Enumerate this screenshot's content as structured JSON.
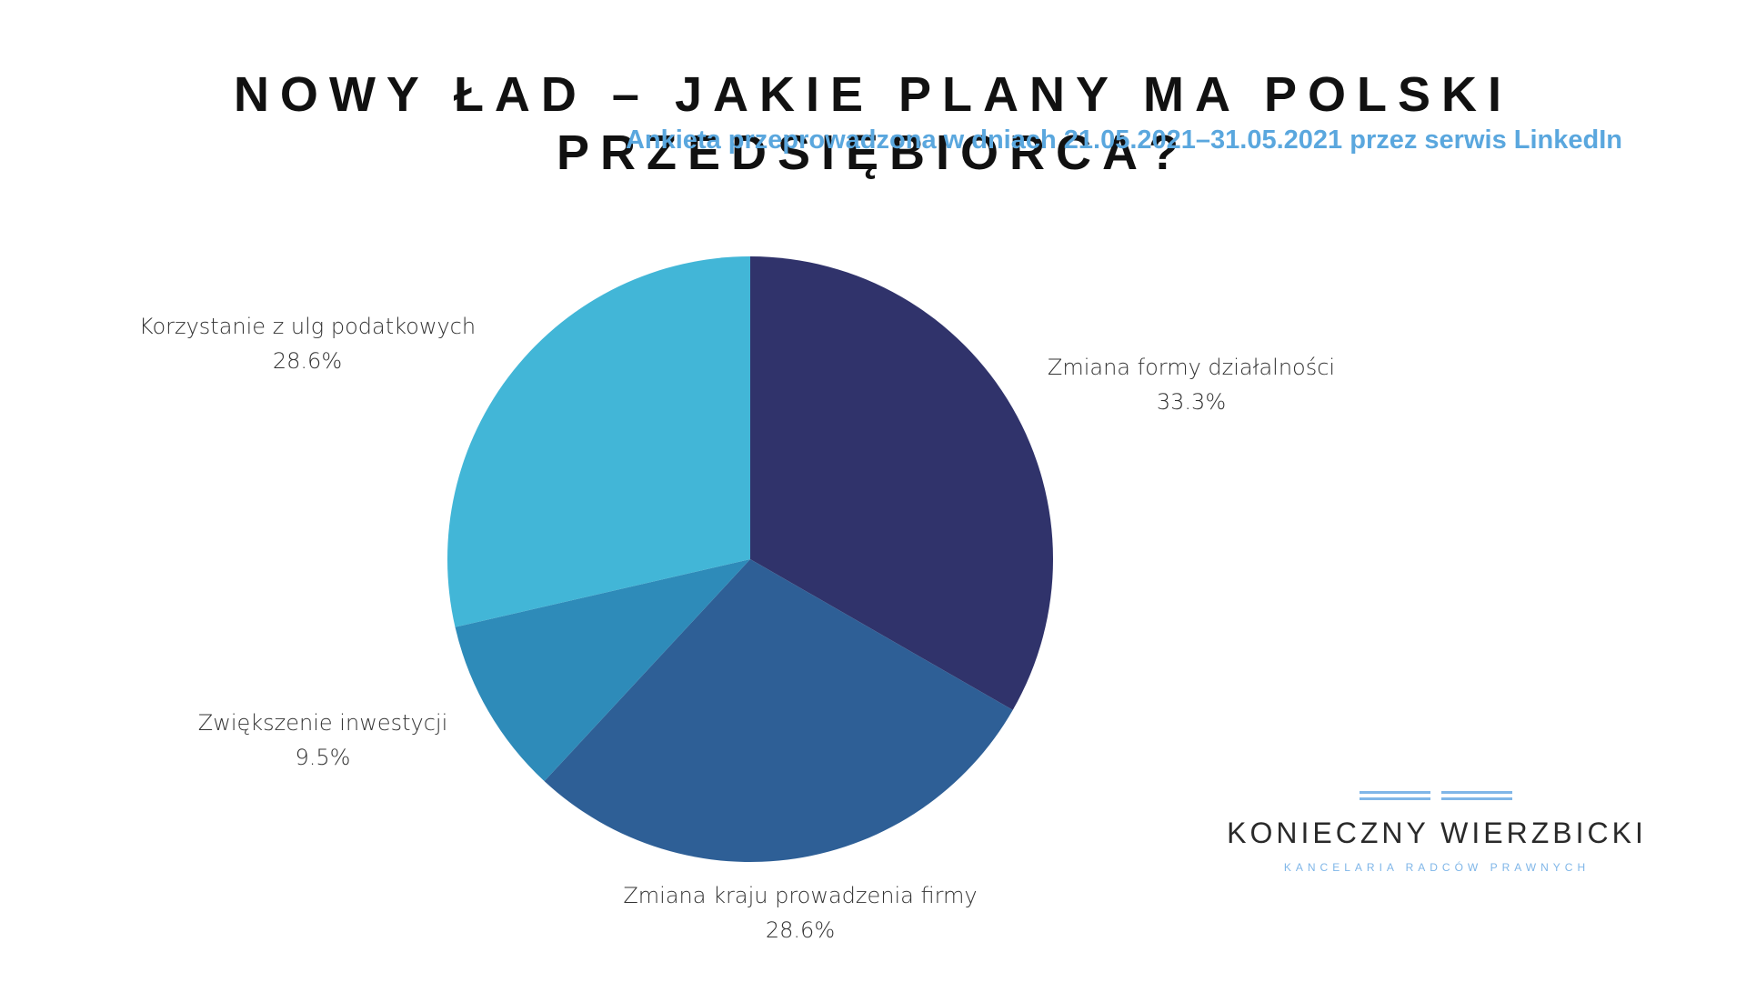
{
  "header": {
    "title": "NOWY ŁAD – JAKIE PLANY MA POLSKI PRZEDSIĘBIORCA?",
    "subtitle": "Ankieta przeprowadzona w dniach 21.05.2021–31.05.2021 przez serwis LinkedIn"
  },
  "chart_data": {
    "type": "pie",
    "title": "NOWY ŁAD – JAKIE PLANY MA POLSKI PRZEDSIĘBIORCA?",
    "subtitle": "Ankieta przeprowadzona w dniach 21.05.2021–31.05.2021 przez serwis LinkedIn",
    "start_angle": "12 o'clock",
    "direction": "clockwise",
    "slices": [
      {
        "label": "Zmiana formy działalności",
        "value": 33.3,
        "value_label": "33.3%",
        "color": "#30336b"
      },
      {
        "label": "Zmiana kraju prowadzenia firmy",
        "value": 28.6,
        "value_label": "28.6%",
        "color": "#2e5f96"
      },
      {
        "label": "Zwiększenie inwestycji",
        "value": 9.5,
        "value_label": "9.5%",
        "color": "#2e8bb9"
      },
      {
        "label": "Korzystanie z ulg podatkowych",
        "value": 28.6,
        "value_label": "28.6%",
        "color": "#42b6d7"
      }
    ]
  },
  "logo": {
    "name": "KONIECZNY WIERZBICKI",
    "tagline": "KANCELARIA RADCÓW PRAWNYCH",
    "accent_color": "#7fb6e8"
  }
}
